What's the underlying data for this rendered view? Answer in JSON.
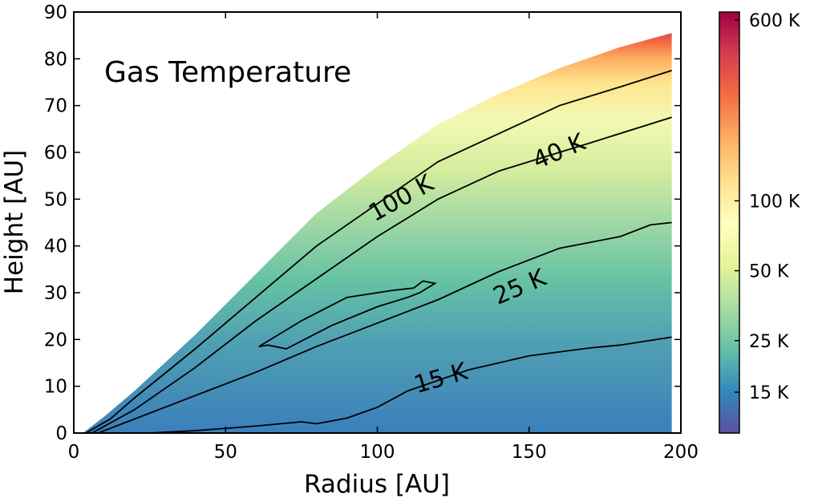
{
  "chart_data": {
    "type": "heatmap",
    "title": "Gas Temperature",
    "xlabel": "Radius [AU]",
    "ylabel": "Height [AU]",
    "xlim": [
      0,
      200
    ],
    "ylim": [
      0,
      90
    ],
    "xticks": [
      0,
      50,
      100,
      150,
      200
    ],
    "yticks": [
      0,
      10,
      20,
      30,
      40,
      50,
      60,
      70,
      80,
      90
    ],
    "colorbar": {
      "colormap": "Spectral_r",
      "scale": "log",
      "ticks": [
        {
          "value": 15,
          "label": "15 K"
        },
        {
          "value": 25,
          "label": "25 K"
        },
        {
          "value": 50,
          "label": "50 K"
        },
        {
          "value": 100,
          "label": "100 K"
        },
        {
          "value": 600,
          "label": "600 K"
        }
      ],
      "colors": [
        "#5e4fa2",
        "#3288bd",
        "#66c2a5",
        "#abdda4",
        "#e6f598",
        "#ffffbf",
        "#fee08b",
        "#fdae61",
        "#f46d43",
        "#d53e4f",
        "#9e0142"
      ]
    },
    "surface_top": [
      [
        3,
        0
      ],
      [
        10,
        3.5
      ],
      [
        20,
        9
      ],
      [
        40,
        21
      ],
      [
        60,
        34
      ],
      [
        80,
        47
      ],
      [
        100,
        57
      ],
      [
        120,
        66
      ],
      [
        140,
        72.5
      ],
      [
        160,
        78
      ],
      [
        180,
        82.5
      ],
      [
        197,
        85.5
      ]
    ],
    "contours": [
      {
        "level": "15 K",
        "points": [
          [
            25,
            0
          ],
          [
            40,
            0.5
          ],
          [
            60,
            1.5
          ],
          [
            75,
            2.4
          ],
          [
            80,
            2
          ],
          [
            90,
            3.2
          ],
          [
            100,
            5.5
          ],
          [
            110,
            9
          ],
          [
            130,
            13.5
          ],
          [
            150,
            16.5
          ],
          [
            170,
            18.2
          ],
          [
            180,
            18.8
          ],
          [
            197,
            20.5
          ]
        ],
        "label": {
          "text": "15 K",
          "x": 121,
          "y": 11.5,
          "angle": -16
        }
      },
      {
        "level": "25 K",
        "points": [
          [
            8,
            0
          ],
          [
            20,
            3
          ],
          [
            40,
            8
          ],
          [
            60,
            13
          ],
          [
            80,
            18.5
          ],
          [
            100,
            23.5
          ],
          [
            120,
            28.5
          ],
          [
            140,
            34.5
          ],
          [
            160,
            39.5
          ],
          [
            180,
            42
          ],
          [
            190,
            44.5
          ],
          [
            197,
            45
          ]
        ],
        "label": {
          "text": "25 K",
          "x": 147,
          "y": 31,
          "angle": -23
        }
      },
      {
        "level": "40 K",
        "points": [
          [
            6,
            0
          ],
          [
            20,
            5
          ],
          [
            40,
            14
          ],
          [
            60,
            24
          ],
          [
            80,
            33
          ],
          [
            100,
            42
          ],
          [
            120,
            50
          ],
          [
            140,
            56
          ],
          [
            150,
            58
          ],
          [
            170,
            62
          ],
          [
            197,
            67.5
          ]
        ],
        "label": {
          "text": "40 K",
          "x": 160,
          "y": 60,
          "angle": -23
        }
      },
      {
        "level": "100 K",
        "points": [
          [
            4,
            0
          ],
          [
            12,
            3
          ],
          [
            20,
            7.5
          ],
          [
            40,
            18
          ],
          [
            60,
            29
          ],
          [
            80,
            40
          ],
          [
            100,
            49
          ],
          [
            120,
            58
          ],
          [
            140,
            64
          ],
          [
            160,
            70
          ],
          [
            180,
            74
          ],
          [
            197,
            77.5
          ]
        ],
        "label": {
          "text": "100 K",
          "x": 108,
          "y": 50,
          "angle": -29
        }
      },
      {
        "level": "100 K (inner)",
        "points": [
          [
            61,
            18.5
          ],
          [
            75,
            24
          ],
          [
            90,
            29
          ],
          [
            105,
            30.5
          ],
          [
            112,
            31
          ],
          [
            115,
            32.5
          ],
          [
            119,
            32
          ],
          [
            114,
            30
          ],
          [
            110,
            29
          ],
          [
            100,
            27
          ],
          [
            85,
            23
          ],
          [
            70,
            18
          ],
          [
            64,
            18.8
          ]
        ],
        "closed": true
      }
    ]
  }
}
